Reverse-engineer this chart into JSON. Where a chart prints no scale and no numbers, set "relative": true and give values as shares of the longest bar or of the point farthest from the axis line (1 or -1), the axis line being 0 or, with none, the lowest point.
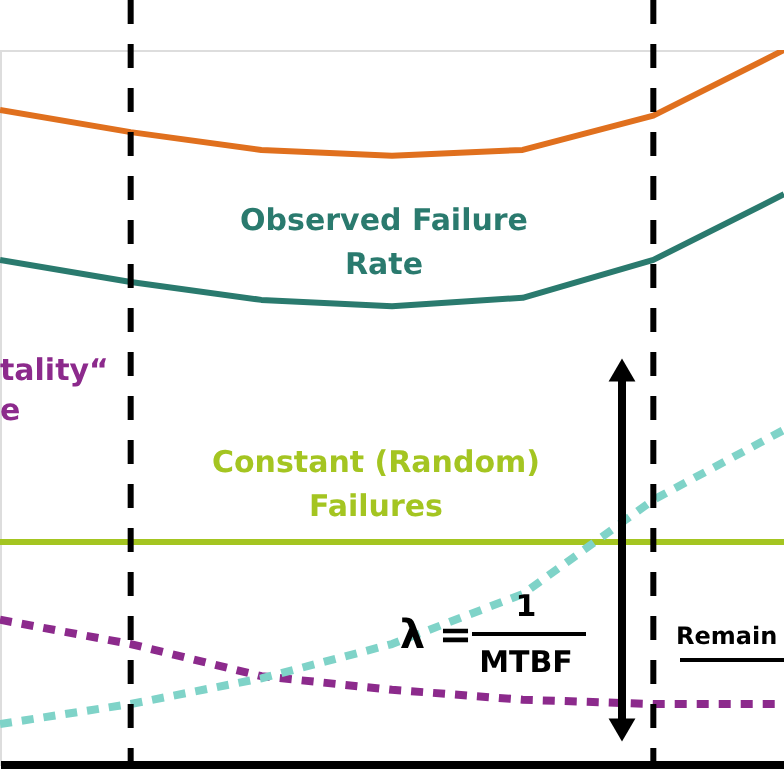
{
  "chart_data": {
    "type": "line",
    "relative": true,
    "categories": [
      null,
      null,
      null,
      null,
      null,
      null,
      null
    ],
    "grid": false,
    "marker": "none",
    "series": [
      {
        "color": "#e0701e",
        "line_style": "solid",
        "values": [
          0.916,
          0.885,
          0.86,
          0.852,
          0.86,
          0.908,
          1
        ]
      },
      {
        "name": "Observed Failure Rate",
        "color": "#2a7a6e",
        "line_style": "solid",
        "values": [
          0.706,
          0.675,
          0.65,
          0.641,
          0.653,
          0.706,
          0.798
        ]
      },
      {
        "name": "Constant (Random) Failures",
        "color": "#a4c521",
        "line_style": "solid",
        "values": [
          0.311,
          0.311,
          0.311,
          0.311,
          0.311,
          0.311,
          0.311
        ]
      },
      {
        "color": "#8c2a8c",
        "line_style": "dotted",
        "values": [
          0.202,
          0.168,
          0.123,
          0.104,
          0.09,
          0.084,
          0.084
        ]
      },
      {
        "color": "#7fd3c8",
        "line_style": "dotted",
        "values": [
          0.056,
          0.084,
          0.12,
          0.168,
          0.238,
          0.37,
          0.468
        ]
      }
    ],
    "annotations": [
      "tality“",
      "e",
      "λ =",
      "1",
      "MTBF",
      "Remain"
    ]
  }
}
